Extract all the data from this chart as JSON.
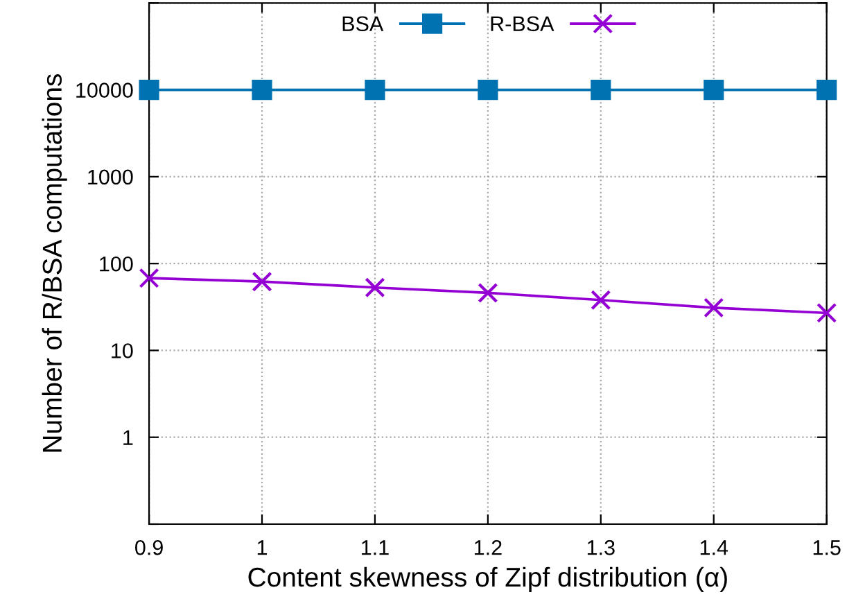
{
  "chart_data": {
    "type": "line",
    "xlabel": "Content skewness of Zipf distribution (α)",
    "ylabel": "Number of R/BSA computations",
    "x": [
      0.9,
      1.0,
      1.1,
      1.2,
      1.3,
      1.4,
      1.5
    ],
    "series": [
      {
        "name": "BSA",
        "color": "#0072b2",
        "values": [
          10000,
          10000,
          10000,
          10000,
          10000,
          10000,
          10000
        ],
        "marker": "square"
      },
      {
        "name": "R-BSA",
        "color": "#9400d3",
        "values": [
          68,
          62,
          53,
          46,
          38,
          31,
          27
        ],
        "marker": "cross"
      }
    ],
    "log": "y",
    "xlim": [
      0.9,
      1.5
    ],
    "ylim": [
      0.1,
      100000
    ],
    "xticks": [
      0.9,
      1,
      1.1,
      1.2,
      1.3,
      1.4,
      1.5
    ],
    "yticks": [
      {
        "value": 0.1,
        "label": null
      },
      1,
      10,
      100,
      1000,
      10000,
      {
        "value": 100000,
        "label": null
      }
    ],
    "grid": true,
    "legend": "top",
    "line_style": "solid"
  }
}
